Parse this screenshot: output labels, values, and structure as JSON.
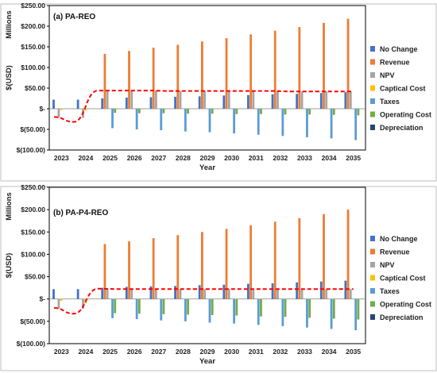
{
  "chart_data": [
    {
      "type": "bar",
      "title": "(a) PA-REO",
      "xlabel": "Year",
      "ylabel": "$(USD)",
      "units_label": "Millions",
      "ylim": [
        -100,
        250
      ],
      "yticks": [
        "$250.00",
        "$200.00",
        "$150.00",
        "$100.00",
        "$50.00",
        "$-",
        "$(50.00)",
        "$(100.00)"
      ],
      "ytick_values": [
        250,
        200,
        150,
        100,
        50,
        0,
        -50,
        -100
      ],
      "categories": [
        "2023",
        "2024",
        "2025",
        "2026",
        "2027",
        "2028",
        "2029",
        "2030",
        "2031",
        "2032",
        "2033",
        "2034",
        "2035"
      ],
      "legend_position": "right",
      "series": [
        {
          "name": "No Change",
          "color": "#4472C4",
          "values": [
            22,
            22,
            25,
            27,
            28,
            29,
            30,
            32,
            33,
            35,
            36,
            38,
            40
          ]
        },
        {
          "name": "Revenue",
          "color": "#ED7D31",
          "values": [
            0,
            0,
            133,
            140,
            148,
            155,
            163,
            171,
            180,
            189,
            198,
            208,
            218
          ]
        },
        {
          "name": "NPV",
          "color": "#A5A5A5",
          "values": [
            -22,
            -22,
            44,
            44,
            44,
            43,
            43,
            43,
            43,
            43,
            42,
            42,
            42
          ]
        },
        {
          "name": "Captical Cost",
          "color": "#FFC000",
          "values": [
            -3,
            -5,
            0,
            0,
            0,
            0,
            0,
            0,
            0,
            0,
            0,
            0,
            0
          ]
        },
        {
          "name": "Taxes",
          "color": "#5B9BD5",
          "values": [
            0,
            0,
            -47,
            -50,
            -52,
            -55,
            -57,
            -60,
            -63,
            -66,
            -69,
            -72,
            -76
          ]
        },
        {
          "name": "Operating Cost",
          "color": "#70AD47",
          "values": [
            0,
            0,
            -10,
            -11,
            -11,
            -12,
            -12,
            -13,
            -13,
            -14,
            -14,
            -15,
            -16
          ]
        },
        {
          "name": "Depreciation",
          "color": "#264478",
          "values": [
            0,
            0,
            0,
            0,
            0,
            0,
            0,
            0,
            0,
            0,
            0,
            0,
            0
          ]
        }
      ],
      "trend": {
        "color": "#FF0000",
        "values": [
          -20,
          -32,
          44,
          44,
          44,
          43,
          43,
          43,
          43,
          43,
          42,
          42,
          42
        ]
      }
    },
    {
      "type": "bar",
      "title": "(b) PA-P4-REO",
      "xlabel": "Year",
      "ylabel": "$(USD)",
      "units_label": "Millions",
      "ylim": [
        -100,
        250
      ],
      "yticks": [
        "$250.00",
        "$200.00",
        "$150.00",
        "$100.00",
        "$50.00",
        "$-",
        "$(50.00)",
        "$(100.00)"
      ],
      "ytick_values": [
        250,
        200,
        150,
        100,
        50,
        0,
        -50,
        -100
      ],
      "categories": [
        "2023",
        "2024",
        "2025",
        "2026",
        "2027",
        "2028",
        "2029",
        "2030",
        "2031",
        "2032",
        "2033",
        "2034",
        "2035"
      ],
      "legend_position": "right",
      "series": [
        {
          "name": "No Change",
          "color": "#4472C4",
          "values": [
            22,
            22,
            25,
            27,
            28,
            29,
            31,
            32,
            34,
            35,
            37,
            39,
            41
          ]
        },
        {
          "name": "Revenue",
          "color": "#ED7D31",
          "values": [
            0,
            0,
            123,
            129,
            136,
            143,
            150,
            157,
            165,
            173,
            181,
            190,
            200
          ]
        },
        {
          "name": "NPV",
          "color": "#A5A5A5",
          "values": [
            -22,
            -22,
            23,
            22,
            22,
            22,
            22,
            22,
            22,
            22,
            22,
            22,
            22
          ]
        },
        {
          "name": "Captical Cost",
          "color": "#FFC000",
          "values": [
            -4,
            -10,
            0,
            0,
            0,
            0,
            0,
            0,
            0,
            0,
            0,
            0,
            0
          ]
        },
        {
          "name": "Taxes",
          "color": "#5B9BD5",
          "values": [
            0,
            0,
            -43,
            -45,
            -48,
            -50,
            -53,
            -55,
            -58,
            -61,
            -64,
            -67,
            -70
          ]
        },
        {
          "name": "Operating Cost",
          "color": "#70AD47",
          "values": [
            0,
            0,
            -32,
            -33,
            -34,
            -35,
            -36,
            -37,
            -39,
            -40,
            -42,
            -44,
            -46
          ]
        },
        {
          "name": "Depreciation",
          "color": "#264478",
          "values": [
            0,
            0,
            0,
            0,
            0,
            0,
            0,
            0,
            0,
            0,
            0,
            0,
            0
          ]
        }
      ],
      "trend": {
        "color": "#FF0000",
        "values": [
          -20,
          -33,
          23,
          22,
          22,
          22,
          22,
          22,
          22,
          22,
          22,
          22,
          22
        ]
      }
    }
  ]
}
